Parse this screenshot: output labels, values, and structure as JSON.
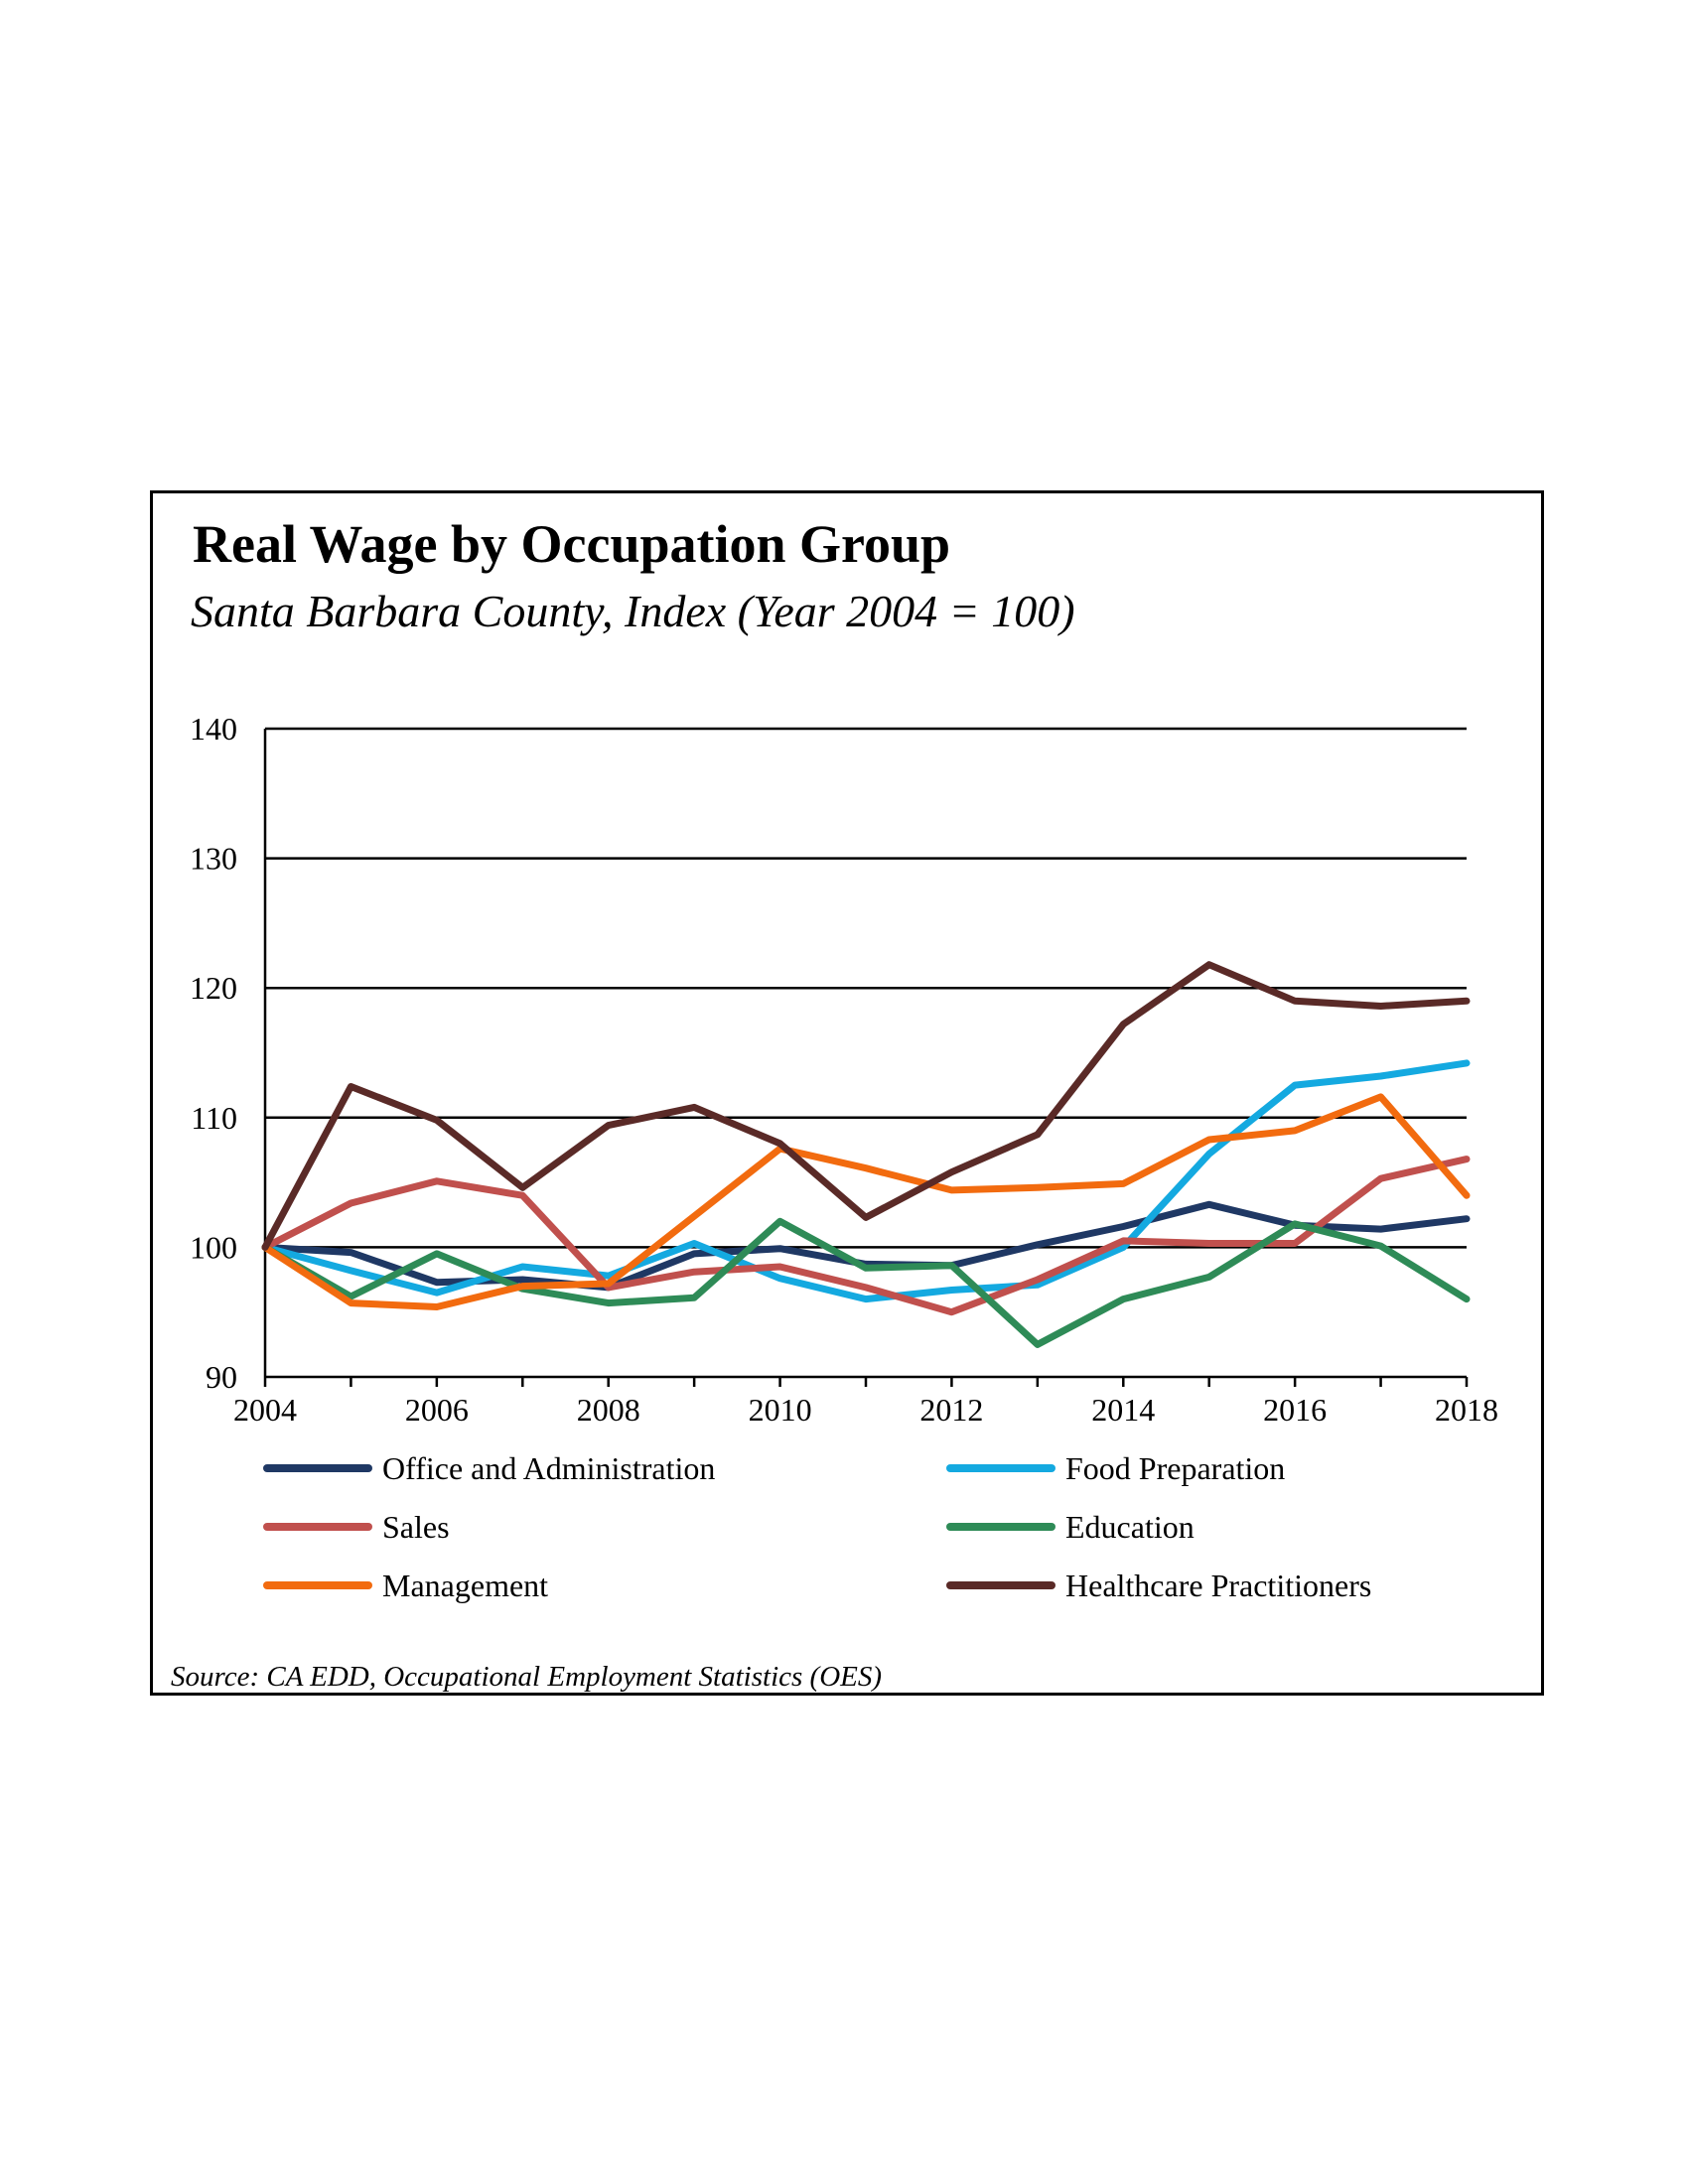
{
  "title": "Real Wage by Occupation Group",
  "subtitle": "Santa Barbara County, Index (Year 2004 = 100)",
  "source": "Source:  CA EDD, Occupational Employment Statistics (OES)",
  "chart_data": {
    "type": "line",
    "title": "Real Wage by Occupation Group",
    "subtitle": "Santa Barbara County, Index (Year 2004 = 100)",
    "x": [
      2004,
      2005,
      2006,
      2007,
      2008,
      2009,
      2010,
      2011,
      2012,
      2013,
      2014,
      2015,
      2016,
      2017,
      2018
    ],
    "x_tick_labels": [
      "2004",
      "2006",
      "2008",
      "2010",
      "2012",
      "2014",
      "2016",
      "2018"
    ],
    "x_ticks": [
      2004,
      2006,
      2008,
      2010,
      2012,
      2014,
      2016,
      2018
    ],
    "y_tick_labels": [
      "90",
      "100",
      "110",
      "120",
      "130",
      "140"
    ],
    "y_ticks": [
      90,
      100,
      110,
      120,
      130,
      140
    ],
    "xlim": [
      2004,
      2018
    ],
    "ylim": [
      90,
      140
    ],
    "grid": "horizontal",
    "legend_placement": "bottom",
    "series": [
      {
        "name": "Office and Administration",
        "color": "#1f3864",
        "values": [
          100,
          99.6,
          97.3,
          97.5,
          96.9,
          99.5,
          99.9,
          98.7,
          98.6,
          100.2,
          101.6,
          103.3,
          101.7,
          101.4,
          102.2
        ]
      },
      {
        "name": "Food Preparation",
        "color": "#14a9e0",
        "values": [
          100,
          98.2,
          96.5,
          98.5,
          97.8,
          100.3,
          97.6,
          96.0,
          96.7,
          97.1,
          100.0,
          107.2,
          112.5,
          113.2,
          114.2
        ]
      },
      {
        "name": "Sales",
        "color": "#c0504d",
        "values": [
          100,
          103.4,
          105.1,
          104.0,
          96.9,
          98.1,
          98.5,
          96.9,
          95.0,
          97.5,
          100.5,
          100.3,
          100.3,
          105.3,
          106.8
        ]
      },
      {
        "name": "Education",
        "color": "#2e8b57",
        "values": [
          100,
          96.2,
          99.5,
          96.8,
          95.7,
          96.1,
          102.0,
          98.4,
          98.6,
          92.5,
          96.0,
          97.7,
          101.8,
          100.1,
          96.0
        ]
      },
      {
        "name": "Management",
        "color": "#f26b0f",
        "values": [
          100,
          95.7,
          95.4,
          97.0,
          97.2,
          102.4,
          107.6,
          106.1,
          104.4,
          104.6,
          104.9,
          108.3,
          109.0,
          111.6,
          104.0
        ]
      },
      {
        "name": "Healthcare Practitioners",
        "color": "#5a2a27",
        "values": [
          100,
          112.4,
          109.8,
          104.6,
          109.4,
          110.8,
          108.0,
          102.3,
          105.8,
          108.7,
          117.2,
          121.8,
          119.0,
          118.6,
          119.0
        ]
      }
    ]
  }
}
